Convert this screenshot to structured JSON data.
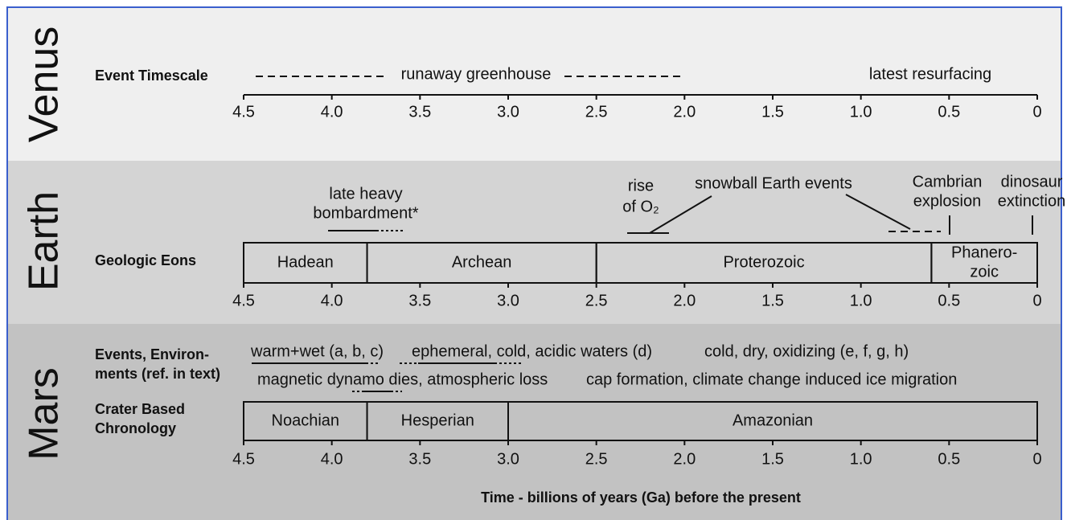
{
  "venus": {
    "name": "Venus",
    "row_label": "Event Timescale",
    "events": [
      "runaway greenhouse",
      "latest resurfacing"
    ]
  },
  "earth": {
    "name": "Earth",
    "row_label": "Geologic Eons",
    "events": [
      [
        "late heavy",
        "bombardment*"
      ],
      [
        "rise",
        "of O₂"
      ],
      "snowball Earth events",
      [
        "Cambrian",
        "explosion"
      ],
      [
        "dinosaur",
        "extinction"
      ]
    ],
    "periods": [
      {
        "label": [
          "Hadean"
        ],
        "from": 4.5,
        "to": 3.8
      },
      {
        "label": [
          "Archean"
        ],
        "from": 3.8,
        "to": 2.5
      },
      {
        "label": [
          "Proterozoic"
        ],
        "from": 2.5,
        "to": 0.6
      },
      {
        "label": [
          "Phanero-",
          "zoic"
        ],
        "from": 0.6,
        "to": 0
      }
    ]
  },
  "mars": {
    "name": "Mars",
    "row_label": [
      "Events, Environ-",
      "ments (ref. in text)"
    ],
    "events": [
      "warm+wet (a, b, c)",
      "ephemeral, cold, acidic waters (d)",
      "cold, dry, oxidizing (e, f, g, h)",
      "magnetic dynamo dies, atmospheric loss",
      "cap formation, climate change induced ice migration"
    ],
    "row_label2": [
      "Crater Based",
      "Chronology"
    ],
    "periods": [
      {
        "label": [
          "Noachian"
        ],
        "from": 4.5,
        "to": 3.8
      },
      {
        "label": [
          "Hesperian"
        ],
        "from": 3.8,
        "to": 3.0
      },
      {
        "label": [
          "Amazonian"
        ],
        "from": 3.0,
        "to": 0
      }
    ]
  },
  "ticks": [
    {
      "value": 4.5,
      "label": "4.5"
    },
    {
      "value": 4,
      "label": "4.0"
    },
    {
      "value": 3.5,
      "label": "3.5"
    },
    {
      "value": 3,
      "label": "3.0"
    },
    {
      "value": 2.5,
      "label": "2.5"
    },
    {
      "value": 2,
      "label": "2.0"
    },
    {
      "value": 1.5,
      "label": "1.5"
    },
    {
      "value": 1,
      "label": "1.0"
    },
    {
      "value": 0.5,
      "label": "0.5"
    },
    {
      "value": 0,
      "label": "0"
    }
  ],
  "axis_title": "Time - billions of years (Ga) before the present"
}
